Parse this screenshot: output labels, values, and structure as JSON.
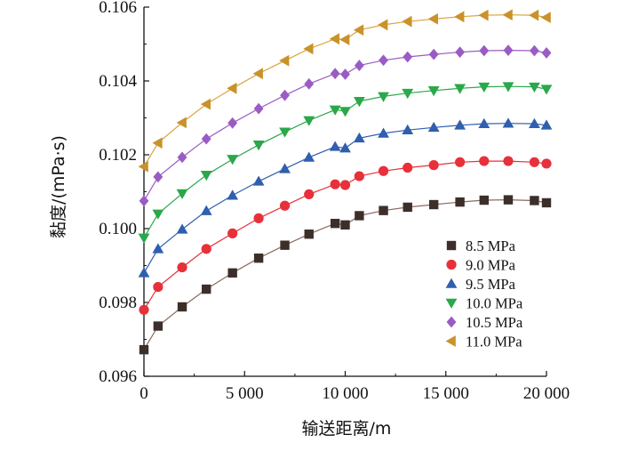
{
  "chart_data": {
    "type": "line",
    "title": "",
    "xlabel": "输送距离/m",
    "ylabel": "黏度/(mPa·s)",
    "xlim": [
      0,
      20000
    ],
    "ylim": [
      0.096,
      0.106
    ],
    "x_ticks": [
      0,
      5000,
      10000,
      15000,
      20000
    ],
    "x_tick_labels": [
      "0",
      "5 000",
      "10 000",
      "15 000",
      "20 000"
    ],
    "y_ticks": [
      0.096,
      0.098,
      0.1,
      0.102,
      0.104,
      0.106
    ],
    "y_tick_labels": [
      "0.096",
      "0.098",
      "0.100",
      "0.102",
      "0.104",
      "0.106"
    ],
    "legend_position": "bottom-right",
    "grid": false,
    "x": [
      0,
      700,
      1900,
      3100,
      4400,
      5700,
      7000,
      8200,
      9500,
      10000,
      10700,
      11900,
      13100,
      14400,
      15700,
      16900,
      18100,
      19400,
      20000
    ],
    "series": [
      {
        "name": "8.5 MPa",
        "marker": "square",
        "color": "#3c2f2a",
        "line_color": "#8a6a60",
        "values": [
          0.09672,
          0.09736,
          0.09788,
          0.09836,
          0.0988,
          0.0992,
          0.09955,
          0.09985,
          0.10014,
          0.1001,
          0.10035,
          0.10049,
          0.10058,
          0.10065,
          0.10072,
          0.10077,
          0.10078,
          0.10076,
          0.1007
        ]
      },
      {
        "name": "9.0 MPa",
        "marker": "circle",
        "color": "#e8303a",
        "line_color": "#e8303a",
        "values": [
          0.0978,
          0.09842,
          0.09895,
          0.09945,
          0.09987,
          0.10028,
          0.10062,
          0.10093,
          0.1012,
          0.10118,
          0.10142,
          0.10156,
          0.10165,
          0.10172,
          0.1018,
          0.10183,
          0.10183,
          0.1018,
          0.10176
        ]
      },
      {
        "name": "9.5 MPa",
        "marker": "triangle-up",
        "color": "#2f5fae",
        "line_color": "#2f5fae",
        "values": [
          0.0988,
          0.09945,
          0.09998,
          0.10048,
          0.1009,
          0.10128,
          0.10162,
          0.10193,
          0.10222,
          0.10218,
          0.10245,
          0.10258,
          0.10267,
          0.10274,
          0.1028,
          0.10284,
          0.10285,
          0.10284,
          0.1028
        ]
      },
      {
        "name": "10.0 MPa",
        "marker": "triangle-down",
        "color": "#2aa84a",
        "line_color": "#2aa84a",
        "values": [
          0.09975,
          0.1004,
          0.10095,
          0.10145,
          0.10188,
          0.10227,
          0.10262,
          0.10293,
          0.10322,
          0.10318,
          0.10345,
          0.10358,
          0.10367,
          0.10374,
          0.1038,
          0.10384,
          0.10385,
          0.10384,
          0.10378
        ]
      },
      {
        "name": "10.5 MPa",
        "marker": "diamond",
        "color": "#9a5cc4",
        "line_color": "#9a5cc4",
        "values": [
          0.10075,
          0.1014,
          0.10193,
          0.10243,
          0.10286,
          0.10325,
          0.10361,
          0.10392,
          0.1042,
          0.10418,
          0.10442,
          0.10456,
          0.10465,
          0.10472,
          0.10478,
          0.10482,
          0.10483,
          0.10482,
          0.10476
        ]
      },
      {
        "name": "11.0 MPa",
        "marker": "triangle-left",
        "color": "#c9922a",
        "line_color": "#d9a640",
        "values": [
          0.10168,
          0.10232,
          0.10287,
          0.10337,
          0.1038,
          0.1042,
          0.10455,
          0.10487,
          0.10514,
          0.10512,
          0.10538,
          0.10552,
          0.10561,
          0.10568,
          0.10574,
          0.10578,
          0.10579,
          0.10578,
          0.10572
        ]
      }
    ]
  }
}
